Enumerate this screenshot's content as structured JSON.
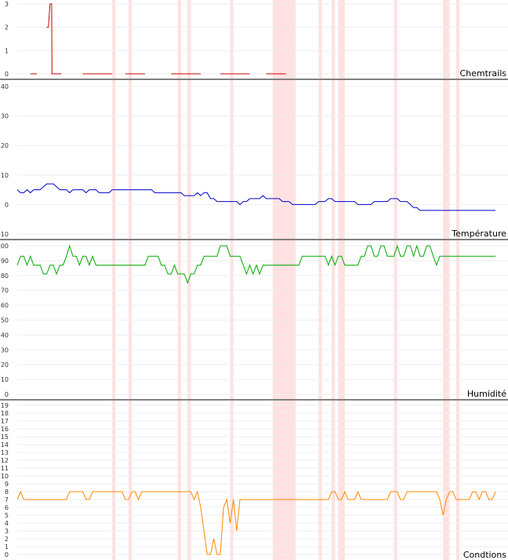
{
  "chart_data": [
    {
      "type": "line",
      "title": "Chemtrails",
      "xlabel": "",
      "ylabel": "",
      "ylim": [
        0,
        3
      ],
      "yticks": [
        0,
        1,
        2,
        3
      ],
      "grid": true,
      "highlight_bands": [
        [
          29,
          30
        ],
        [
          34,
          35
        ],
        [
          49,
          50
        ],
        [
          52,
          53
        ],
        [
          65,
          66
        ],
        [
          78,
          85
        ],
        [
          92,
          93
        ],
        [
          96,
          97
        ],
        [
          98,
          100
        ],
        [
          115,
          116
        ],
        [
          130,
          132
        ],
        [
          134,
          135
        ]
      ],
      "series": [
        {
          "color": "#cc0000",
          "segments": [
            [
              [
                4,
                0
              ],
              [
                6,
                0
              ]
            ],
            [
              [
                9,
                2
              ],
              [
                9.5,
                2
              ],
              [
                10,
                3
              ],
              [
                10.5,
                3
              ],
              [
                10.6,
                0
              ],
              [
                13.5,
                0
              ]
            ],
            [
              [
                20,
                0
              ],
              [
                29,
                0
              ]
            ],
            [
              [
                33,
                0
              ],
              [
                39,
                0
              ]
            ],
            [
              [
                47,
                0
              ],
              [
                56,
                0
              ]
            ],
            [
              [
                62,
                0
              ],
              [
                71,
                0
              ]
            ],
            [
              [
                76,
                0
              ],
              [
                82,
                0
              ]
            ]
          ]
        }
      ]
    },
    {
      "type": "line",
      "title": "Température",
      "xlabel": "",
      "ylabel": "",
      "ylim": [
        -10,
        40
      ],
      "yticks": [
        -10,
        0,
        10,
        20,
        30,
        40
      ],
      "grid": true,
      "highlight_bands": [
        [
          29,
          30
        ],
        [
          34,
          35
        ],
        [
          49,
          50
        ],
        [
          52,
          53
        ],
        [
          65,
          66
        ],
        [
          78,
          85
        ],
        [
          92,
          93
        ],
        [
          96,
          97
        ],
        [
          98,
          100
        ],
        [
          115,
          116
        ],
        [
          130,
          132
        ],
        [
          134,
          135
        ]
      ],
      "series": [
        {
          "color": "#0000cc",
          "values": [
            5,
            4,
            4,
            5,
            4,
            5,
            5,
            5,
            6,
            7,
            7,
            7,
            6,
            5,
            5,
            5,
            4,
            5,
            5,
            5,
            5,
            4,
            5,
            5,
            5,
            4,
            4,
            4,
            4,
            5,
            5,
            5,
            5,
            5,
            5,
            5,
            5,
            5,
            5,
            5,
            5,
            5,
            4,
            4,
            4,
            4,
            4,
            4,
            4,
            4,
            4,
            3,
            3,
            3,
            3,
            4,
            3,
            4,
            4,
            2,
            2,
            1,
            1,
            1,
            1,
            1,
            1,
            1,
            0,
            1,
            1,
            2,
            2,
            2,
            2,
            3,
            2,
            2,
            2,
            2,
            2,
            1,
            1,
            1,
            0,
            0,
            0,
            0,
            0,
            0,
            0,
            0,
            1,
            1,
            1,
            2,
            2,
            1,
            1,
            1,
            1,
            1,
            1,
            1,
            0,
            0,
            0,
            0,
            0,
            1,
            1,
            1,
            1,
            1,
            2,
            2,
            2,
            1,
            1,
            1,
            0,
            -1,
            -1,
            -2,
            -2,
            -2,
            -2,
            -2,
            -2,
            -2,
            -2,
            -2,
            -2,
            -2,
            -2,
            -2,
            -2,
            -2,
            -2,
            -2,
            -2,
            -2,
            -2,
            -2,
            -2,
            -2,
            -2
          ]
        }
      ]
    },
    {
      "type": "line",
      "title": "Humidité",
      "xlabel": "",
      "ylabel": "",
      "ylim": [
        0,
        100
      ],
      "yticks": [
        0,
        10,
        20,
        30,
        40,
        50,
        60,
        70,
        80,
        90,
        100
      ],
      "grid": true,
      "highlight_bands": [
        [
          29,
          30
        ],
        [
          34,
          35
        ],
        [
          49,
          50
        ],
        [
          52,
          53
        ],
        [
          65,
          66
        ],
        [
          78,
          85
        ],
        [
          92,
          93
        ],
        [
          96,
          97
        ],
        [
          98,
          100
        ],
        [
          115,
          116
        ],
        [
          130,
          132
        ],
        [
          134,
          135
        ]
      ],
      "series": [
        {
          "color": "#00aa00",
          "values": [
            87,
            93,
            93,
            87,
            93,
            87,
            87,
            87,
            81,
            81,
            87,
            87,
            81,
            87,
            87,
            93,
            100,
            93,
            93,
            87,
            93,
            93,
            87,
            93,
            87,
            87,
            87,
            87,
            87,
            87,
            87,
            87,
            87,
            87,
            87,
            87,
            87,
            87,
            87,
            87,
            93,
            93,
            93,
            93,
            87,
            87,
            81,
            81,
            87,
            81,
            81,
            81,
            75,
            81,
            81,
            87,
            87,
            93,
            93,
            93,
            93,
            93,
            100,
            100,
            100,
            93,
            93,
            93,
            93,
            87,
            81,
            87,
            81,
            87,
            81,
            87,
            87,
            87,
            87,
            87,
            87,
            87,
            87,
            87,
            87,
            87,
            87,
            93,
            93,
            93,
            93,
            93,
            93,
            93,
            93,
            87,
            93,
            87,
            93,
            93,
            87,
            87,
            87,
            87,
            87,
            93,
            93,
            100,
            100,
            93,
            93,
            100,
            100,
            93,
            93,
            93,
            100,
            93,
            93,
            100,
            100,
            93,
            100,
            93,
            93,
            100,
            100,
            93,
            87,
            93,
            93,
            93,
            93,
            93,
            93,
            93,
            93,
            93,
            93,
            93,
            93,
            93,
            93,
            93,
            93,
            93,
            93
          ]
        }
      ]
    },
    {
      "type": "line",
      "title": "Condtions",
      "xlabel": "",
      "ylabel": "",
      "ylim": [
        0,
        19
      ],
      "yticks": [
        0,
        1,
        2,
        3,
        4,
        5,
        6,
        7,
        8,
        9,
        10,
        11,
        12,
        13,
        14,
        15,
        16,
        17,
        18,
        19
      ],
      "grid": true,
      "highlight_bands": [
        [
          29,
          30
        ],
        [
          34,
          35
        ],
        [
          49,
          50
        ],
        [
          52,
          53
        ],
        [
          65,
          66
        ],
        [
          78,
          85
        ],
        [
          92,
          93
        ],
        [
          96,
          97
        ],
        [
          98,
          100
        ],
        [
          115,
          116
        ],
        [
          130,
          132
        ],
        [
          134,
          135
        ]
      ],
      "series": [
        {
          "color": "#ff8800",
          "values": [
            7,
            8,
            7,
            7,
            7,
            7,
            7,
            7,
            7,
            7,
            7,
            7,
            7,
            7,
            7,
            7,
            8,
            8,
            8,
            8,
            8,
            7,
            7,
            8,
            8,
            8,
            8,
            8,
            8,
            8,
            8,
            8,
            8,
            7,
            7,
            8,
            8,
            7,
            8,
            8,
            8,
            8,
            8,
            8,
            8,
            8,
            8,
            8,
            8,
            8,
            8,
            8,
            8,
            8,
            7,
            8,
            6,
            3,
            0,
            0,
            2,
            0,
            0,
            6,
            7,
            4,
            7,
            3,
            7,
            7,
            7,
            7,
            7,
            7,
            7,
            7,
            7,
            7,
            7,
            7,
            7,
            7,
            7,
            7,
            7,
            7,
            7,
            7,
            7,
            7,
            7,
            7,
            7,
            7,
            7,
            7,
            8,
            8,
            7,
            7,
            8,
            7,
            7,
            7,
            8,
            7,
            7,
            7,
            7,
            7,
            7,
            7,
            7,
            7,
            8,
            8,
            8,
            7,
            7,
            8,
            8,
            8,
            8,
            8,
            8,
            8,
            8,
            8,
            8,
            7,
            5,
            7,
            8,
            8,
            7,
            7,
            7,
            7,
            7,
            8,
            8,
            7,
            8,
            8,
            7,
            7,
            8
          ]
        }
      ]
    }
  ]
}
